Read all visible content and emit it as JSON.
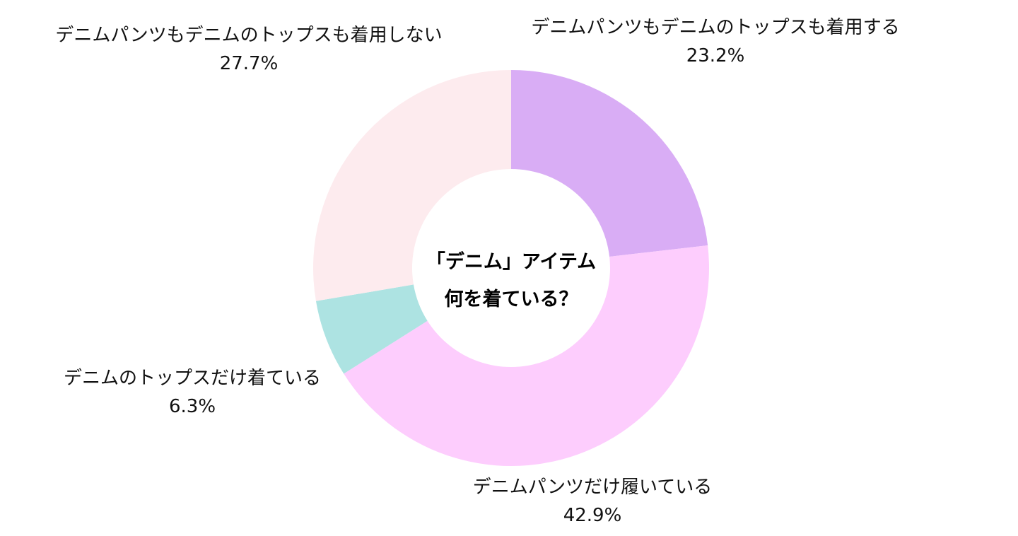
{
  "chart_data": {
    "type": "pie",
    "donut": true,
    "title_lines": [
      "「デニム」アイテム",
      "何を着ている？"
    ],
    "unit": "%",
    "slices": [
      {
        "label": "デニムパンツもデニムのトップスも着用する",
        "value": 23.2,
        "display": "23.2%",
        "color": "#d9adf5"
      },
      {
        "label": "デニムパンツだけ履いている",
        "value": 42.9,
        "display": "42.9%",
        "color": "#fdcdfd"
      },
      {
        "label": "デニムのトップスだけ着ている",
        "value": 6.3,
        "display": "6.3%",
        "color": "#ade3e2"
      },
      {
        "label": "デニムパンツもデニムのトップスも着用しない",
        "value": 27.7,
        "display": "27.7%",
        "color": "#fdebee"
      }
    ],
    "start_angle": "12 o'clock",
    "direction": "clockwise",
    "legend": "none"
  }
}
